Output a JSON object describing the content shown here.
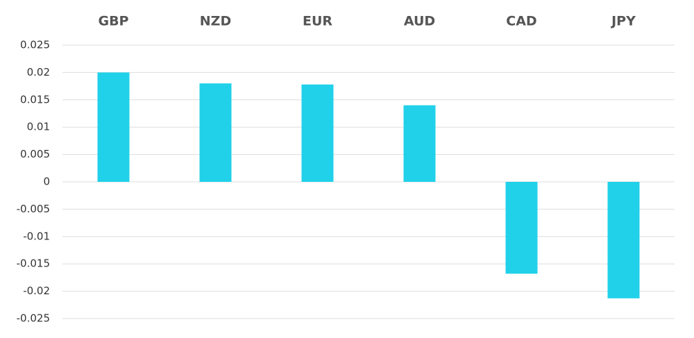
{
  "chart_data": {
    "type": "bar",
    "categories": [
      "GBP",
      "NZD",
      "EUR",
      "AUD",
      "CAD",
      "JPY"
    ],
    "values": [
      0.02,
      0.018,
      0.0178,
      0.014,
      -0.0168,
      -0.0213
    ],
    "color": "#21d1ea",
    "ylim": [
      -0.025,
      0.025
    ],
    "yticks": [
      0.025,
      0.02,
      0.015,
      0.01,
      0.005,
      0,
      -0.005,
      -0.01,
      -0.015,
      -0.02,
      -0.025
    ],
    "grid": true
  }
}
